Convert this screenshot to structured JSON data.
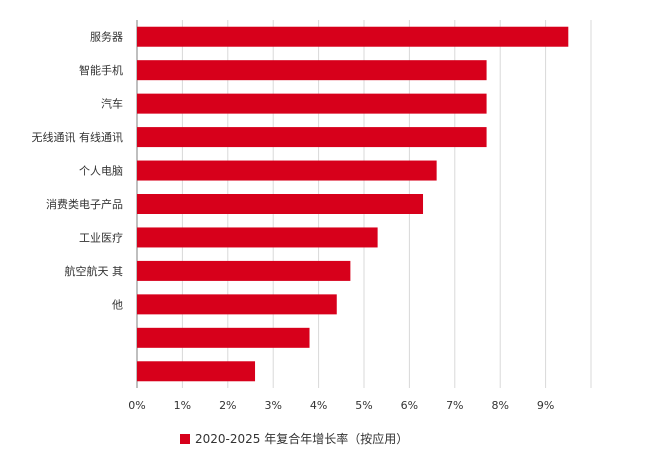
{
  "chart_data": {
    "type": "bar",
    "orientation": "horizontal",
    "categories": [
      "服务器",
      "智能手机",
      "汽车",
      "无线通讯 有线通讯",
      "个人电脑",
      "消费类电子产品",
      "工业医疗",
      "航空航天 其",
      "他",
      "",
      ""
    ],
    "series": [
      {
        "name": "2020-2025 年复合年增长率（按应用）",
        "values": [
          9.5,
          7.7,
          7.7,
          7.7,
          6.6,
          6.3,
          5.3,
          4.7,
          4.4,
          3.8,
          2.6
        ]
      }
    ],
    "xlim": [
      0,
      10
    ],
    "xticks": [
      "0%",
      "1%",
      "2%",
      "3%",
      "4%",
      "5%",
      "6%",
      "7%",
      "8%",
      "9%"
    ],
    "grid": true,
    "legend_position": "bottom",
    "bar_color": "#d7001b"
  }
}
